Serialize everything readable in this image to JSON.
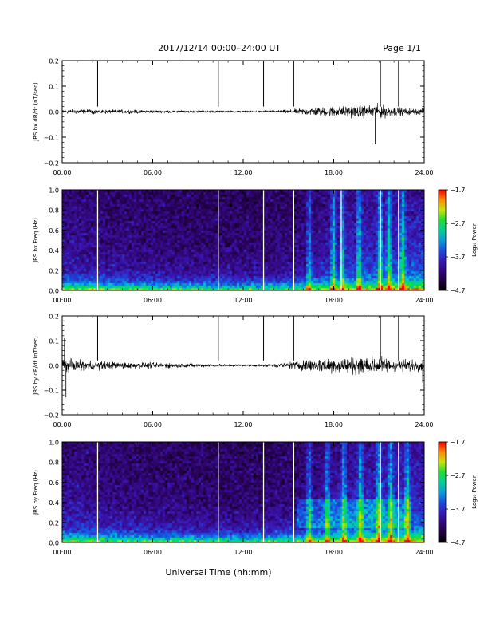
{
  "header": {
    "title": "2017/12/14   00:00–24:00 UT",
    "page": "Page 1/1"
  },
  "footer": {
    "xlabel": "Universal Time (hh:mm)"
  },
  "colors": {
    "spectrogram_low": "#000000",
    "spectrogram_mid": "#3a1ea0",
    "spectrogram_high": "#ff0000",
    "trace": "#000000",
    "gap_line": "#ffffff"
  },
  "chart_data": [
    {
      "type": "line",
      "title": "",
      "ylabel": "JBS bx dB/dt (nT/sec)",
      "ylim": [
        -0.2,
        0.2
      ],
      "yticks": [
        -0.2,
        -0.1,
        0.0,
        0.1,
        0.2
      ],
      "ytick_labels": [
        "−0.2",
        "−0.1",
        "0.0",
        "0.1",
        "0.2"
      ],
      "xlim": [
        0,
        24
      ],
      "xticks": [
        0,
        6,
        12,
        18,
        24
      ],
      "xtick_labels": [
        "00:00",
        "06:00",
        "12:00",
        "18:00",
        "24:00"
      ],
      "gap_markers_hours": [
        2.35,
        10.35,
        13.35,
        15.35,
        21.1,
        22.3
      ],
      "noise_envelope": {
        "hours": [
          0,
          2,
          4,
          6,
          8,
          10,
          12,
          14,
          15,
          16,
          17,
          18,
          19,
          20,
          21,
          22,
          23,
          24
        ],
        "amplitude": [
          0.012,
          0.012,
          0.01,
          0.008,
          0.006,
          0.005,
          0.004,
          0.006,
          0.01,
          0.018,
          0.024,
          0.028,
          0.03,
          0.032,
          0.04,
          0.024,
          0.018,
          0.016
        ]
      },
      "spikes": [
        {
          "hour": 20.75,
          "value": -0.125
        },
        {
          "hour": 20.8,
          "value": 0.03
        }
      ]
    },
    {
      "type": "heatmap",
      "ylabel": "JBS bx Freq (Hz)",
      "ylim": [
        0.0,
        1.0
      ],
      "yticks": [
        0.0,
        0.2,
        0.4,
        0.6,
        0.8,
        1.0
      ],
      "ytick_labels": [
        "0.0",
        "0.2",
        "0.4",
        "0.6",
        "0.8",
        "1.0"
      ],
      "xlim": [
        0,
        24
      ],
      "xticks": [
        0,
        6,
        12,
        18,
        24
      ],
      "xtick_labels": [
        "00:00",
        "06:00",
        "12:00",
        "18:00",
        "24:00"
      ],
      "gap_markers_hours": [
        2.35,
        10.35,
        13.35,
        15.35,
        18.5,
        21.1,
        22.3
      ],
      "colorbar": {
        "label": "Log₁₀ Power",
        "range": [
          -4.7,
          -1.7
        ],
        "ticks": [
          -1.7,
          -2.7,
          -3.7,
          -4.7
        ],
        "tick_labels": [
          "−1.7",
          "−2.7",
          "−3.7",
          "−4.7"
        ]
      }
    },
    {
      "type": "line",
      "title": "",
      "ylabel": "JBS by dB/dt (nT/sec)",
      "ylim": [
        -0.2,
        0.2
      ],
      "yticks": [
        -0.2,
        -0.1,
        0.0,
        0.1,
        0.2
      ],
      "ytick_labels": [
        "−0.2",
        "−0.1",
        "0.0",
        "0.1",
        "0.2"
      ],
      "xlim": [
        0,
        24
      ],
      "xticks": [
        0,
        6,
        12,
        18,
        24
      ],
      "xtick_labels": [
        "00:00",
        "06:00",
        "12:00",
        "18:00",
        "24:00"
      ],
      "gap_markers_hours": [
        2.35,
        10.35,
        13.35,
        15.35,
        21.1,
        22.3
      ],
      "noise_envelope": {
        "hours": [
          0,
          1,
          2,
          4,
          6,
          8,
          10,
          12,
          14,
          15,
          16,
          17,
          18,
          19,
          20,
          21,
          22,
          23,
          24
        ],
        "amplitude": [
          0.035,
          0.03,
          0.024,
          0.02,
          0.016,
          0.012,
          0.008,
          0.006,
          0.008,
          0.018,
          0.03,
          0.04,
          0.045,
          0.048,
          0.05,
          0.048,
          0.035,
          0.032,
          0.03
        ]
      },
      "spikes": [
        {
          "hour": 0.15,
          "value": 0.11
        },
        {
          "hour": 0.25,
          "value": -0.13
        },
        {
          "hour": 23.9,
          "value": -0.07
        }
      ]
    },
    {
      "type": "heatmap",
      "ylabel": "JBS by Freq (Hz)",
      "ylim": [
        0.0,
        1.0
      ],
      "yticks": [
        0.0,
        0.2,
        0.4,
        0.6,
        0.8,
        1.0
      ],
      "ytick_labels": [
        "0.0",
        "0.2",
        "0.4",
        "0.6",
        "0.8",
        "1.0"
      ],
      "xlim": [
        0,
        24
      ],
      "xticks": [
        0,
        6,
        12,
        18,
        24
      ],
      "xtick_labels": [
        "00:00",
        "06:00",
        "12:00",
        "18:00",
        "24:00"
      ],
      "gap_markers_hours": [
        2.35,
        10.35,
        13.35,
        15.35,
        21.1,
        22.3
      ],
      "colorbar": {
        "label": "Log₁₀ Power",
        "range": [
          -4.7,
          -1.7
        ],
        "ticks": [
          -1.7,
          -2.7,
          -3.7,
          -4.7
        ],
        "tick_labels": [
          "−1.7",
          "−2.7",
          "−3.7",
          "−4.7"
        ]
      }
    }
  ]
}
